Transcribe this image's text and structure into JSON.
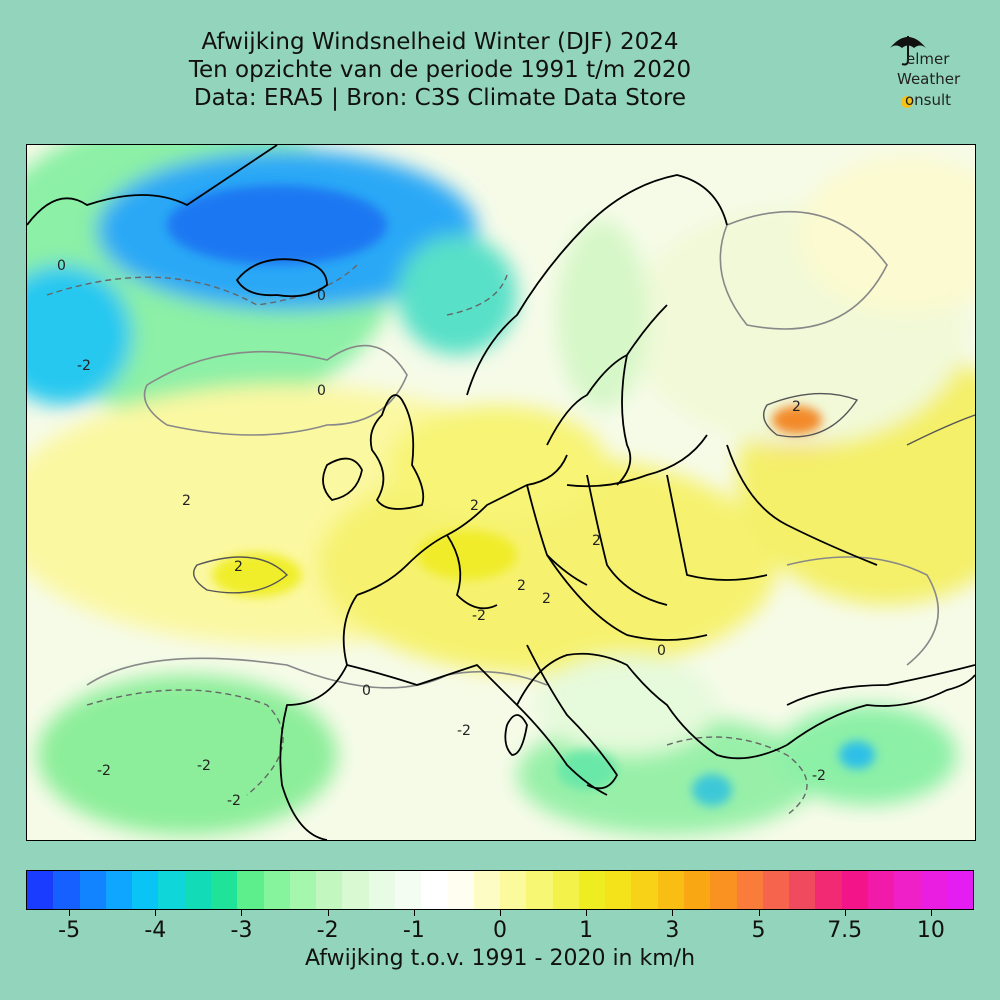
{
  "title": {
    "line1": "Afwijking Windsnelheid Winter (DJF) 2024",
    "line2": "Ten opzichte van de periode 1991 t/m 2020",
    "line3": "Data: ERA5 | Bron: C3S Climate Data Store"
  },
  "logo": {
    "line1": "elmer",
    "line2": "Weather",
    "line3": "onsult",
    "icon": "umbrella-icon"
  },
  "map": {
    "contour_labels": [
      "0",
      "-2",
      "2",
      "0",
      "-2",
      "2",
      "2",
      "-2",
      "2",
      "0",
      "2",
      "2",
      "-2",
      "-2",
      "-2",
      "0",
      "2",
      "-2",
      "0"
    ]
  },
  "colorbar": {
    "label": "Afwijking t.o.v. 1991 - 2020 in km/h",
    "ticks": [
      "-5",
      "-4",
      "-3",
      "-2",
      "-1",
      "0",
      "1",
      "3",
      "5",
      "7.5",
      "10"
    ],
    "colors": [
      "#1a3cff",
      "#1560ff",
      "#1284ff",
      "#0ea6ff",
      "#0bc4f6",
      "#0fd6d8",
      "#12dcb8",
      "#20e39a",
      "#5cef8c",
      "#86f49c",
      "#a6f7ae",
      "#c2f8c0",
      "#d8f9d2",
      "#e8fbe4",
      "#f4fdf2",
      "#ffffff",
      "#fffef0",
      "#fdfcc4",
      "#fbfa9c",
      "#f8f774",
      "#f3f24a",
      "#eded22",
      "#f4e21a",
      "#f8d216",
      "#f9be14",
      "#f9a814",
      "#f99220",
      "#f97c3a",
      "#f7644e",
      "#f04a5e",
      "#f22a74",
      "#f21488",
      "#f21aa8",
      "#f020c8",
      "#ea1ee0",
      "#e41df2"
    ],
    "tick_fractions": [
      0.0455,
      0.1364,
      0.2273,
      0.3182,
      0.4091,
      0.5,
      0.5909,
      0.6818,
      0.7727,
      0.8636,
      0.9545
    ]
  }
}
